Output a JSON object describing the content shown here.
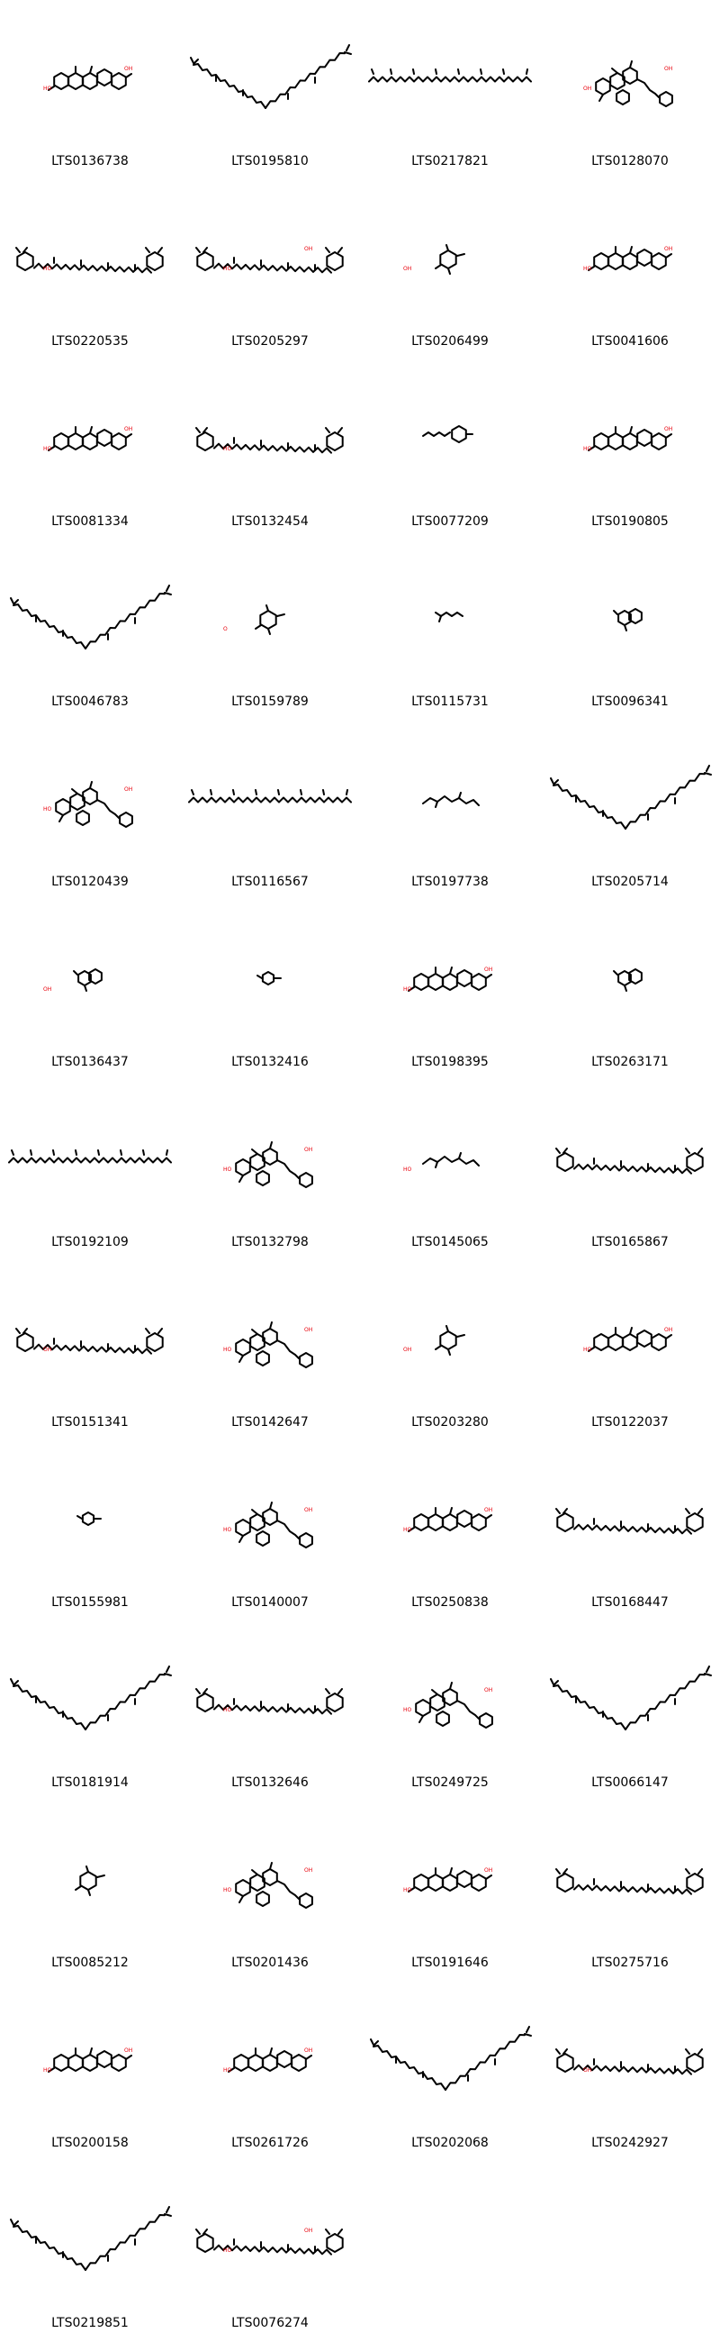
{
  "molecules": [
    {
      "id": "LTS0136738",
      "shape": "fused",
      "oh_labels": [
        "HO",
        "OH"
      ]
    },
    {
      "id": "LTS0195810",
      "shape": "vchain",
      "oh_labels": []
    },
    {
      "id": "LTS0217821",
      "shape": "line",
      "oh_labels": []
    },
    {
      "id": "LTS0128070",
      "shape": "complex",
      "oh_labels": [
        "OH",
        "OH"
      ]
    },
    {
      "id": "LTS0220535",
      "shape": "carotenoid",
      "oh_labels": [
        "HO"
      ]
    },
    {
      "id": "LTS0205297",
      "shape": "carotenoid",
      "oh_labels": [
        "HO",
        "OH"
      ]
    },
    {
      "id": "LTS0206499",
      "shape": "small-ring",
      "oh_labels": [
        "OH"
      ]
    },
    {
      "id": "LTS0041606",
      "shape": "fused",
      "oh_labels": [
        "HO",
        "OH"
      ]
    },
    {
      "id": "LTS0081334",
      "shape": "fused",
      "oh_labels": [
        "HO",
        "OH"
      ]
    },
    {
      "id": "LTS0132454",
      "shape": "carotenoid",
      "oh_labels": [
        "HO"
      ]
    },
    {
      "id": "LTS0077209",
      "shape": "short-ring",
      "oh_labels": []
    },
    {
      "id": "LTS0190805",
      "shape": "fused",
      "oh_labels": [
        "HO",
        "OH"
      ]
    },
    {
      "id": "LTS0046783",
      "shape": "vchain",
      "oh_labels": []
    },
    {
      "id": "LTS0159789",
      "shape": "small-ring",
      "oh_labels": [
        "O"
      ]
    },
    {
      "id": "LTS0115731",
      "shape": "tiny",
      "oh_labels": []
    },
    {
      "id": "LTS0096341",
      "shape": "bicyclic",
      "oh_labels": []
    },
    {
      "id": "LTS0120439",
      "shape": "complex",
      "oh_labels": [
        "HO",
        "OH"
      ]
    },
    {
      "id": "LTS0116567",
      "shape": "line",
      "oh_labels": []
    },
    {
      "id": "LTS0197738",
      "shape": "short-chain",
      "oh_labels": []
    },
    {
      "id": "LTS0205714",
      "shape": "vchain",
      "oh_labels": []
    },
    {
      "id": "LTS0136437",
      "shape": "bicyclic",
      "oh_labels": [
        "OH"
      ]
    },
    {
      "id": "LTS0132416",
      "shape": "tiny-ring",
      "oh_labels": []
    },
    {
      "id": "LTS0198395",
      "shape": "fused",
      "oh_labels": [
        "HO",
        "OH"
      ]
    },
    {
      "id": "LTS0263171",
      "shape": "bicyclic",
      "oh_labels": []
    },
    {
      "id": "LTS0192109",
      "shape": "line",
      "oh_labels": []
    },
    {
      "id": "LTS0132798",
      "shape": "complex",
      "oh_labels": [
        "HO",
        "OH"
      ]
    },
    {
      "id": "LTS0145065",
      "shape": "short-chain",
      "oh_labels": [
        "HO"
      ]
    },
    {
      "id": "LTS0165867",
      "shape": "carotenoid",
      "oh_labels": []
    },
    {
      "id": "LTS0151341",
      "shape": "carotenoid",
      "oh_labels": [
        "OH"
      ]
    },
    {
      "id": "LTS0142647",
      "shape": "complex",
      "oh_labels": [
        "HO",
        "OH"
      ]
    },
    {
      "id": "LTS0203280",
      "shape": "small-ring",
      "oh_labels": [
        "OH"
      ]
    },
    {
      "id": "LTS0122037",
      "shape": "fused",
      "oh_labels": [
        "HO",
        "OH"
      ]
    },
    {
      "id": "LTS0155981",
      "shape": "tiny-ring",
      "oh_labels": []
    },
    {
      "id": "LTS0140007",
      "shape": "complex",
      "oh_labels": [
        "HO",
        "OH"
      ]
    },
    {
      "id": "LTS0250838",
      "shape": "fused",
      "oh_labels": [
        "HO",
        "OH"
      ]
    },
    {
      "id": "LTS0168447",
      "shape": "carotenoid",
      "oh_labels": []
    },
    {
      "id": "LTS0181914",
      "shape": "vchain",
      "oh_labels": []
    },
    {
      "id": "LTS0132646",
      "shape": "carotenoid",
      "oh_labels": [
        "HO"
      ]
    },
    {
      "id": "LTS0249725",
      "shape": "complex",
      "oh_labels": [
        "HO",
        "OH"
      ]
    },
    {
      "id": "LTS0066147",
      "shape": "vchain",
      "oh_labels": []
    },
    {
      "id": "LTS0085212",
      "shape": "small-ring",
      "oh_labels": []
    },
    {
      "id": "LTS0201436",
      "shape": "complex",
      "oh_labels": [
        "HO",
        "OH"
      ]
    },
    {
      "id": "LTS0191646",
      "shape": "fused",
      "oh_labels": [
        "HO",
        "OH"
      ]
    },
    {
      "id": "LTS0275716",
      "shape": "carotenoid",
      "oh_labels": []
    },
    {
      "id": "LTS0200158",
      "shape": "fused",
      "oh_labels": [
        "HO",
        "OH"
      ]
    },
    {
      "id": "LTS0261726",
      "shape": "fused",
      "oh_labels": [
        "HO",
        "OH"
      ]
    },
    {
      "id": "LTS0202068",
      "shape": "vchain",
      "oh_labels": []
    },
    {
      "id": "LTS0242927",
      "shape": "carotenoid",
      "oh_labels": [
        "OH"
      ]
    },
    {
      "id": "LTS0219851",
      "shape": "vchain",
      "oh_labels": []
    },
    {
      "id": "LTS0076274",
      "shape": "carotenoid",
      "oh_labels": [
        "HO",
        "OH"
      ]
    }
  ]
}
